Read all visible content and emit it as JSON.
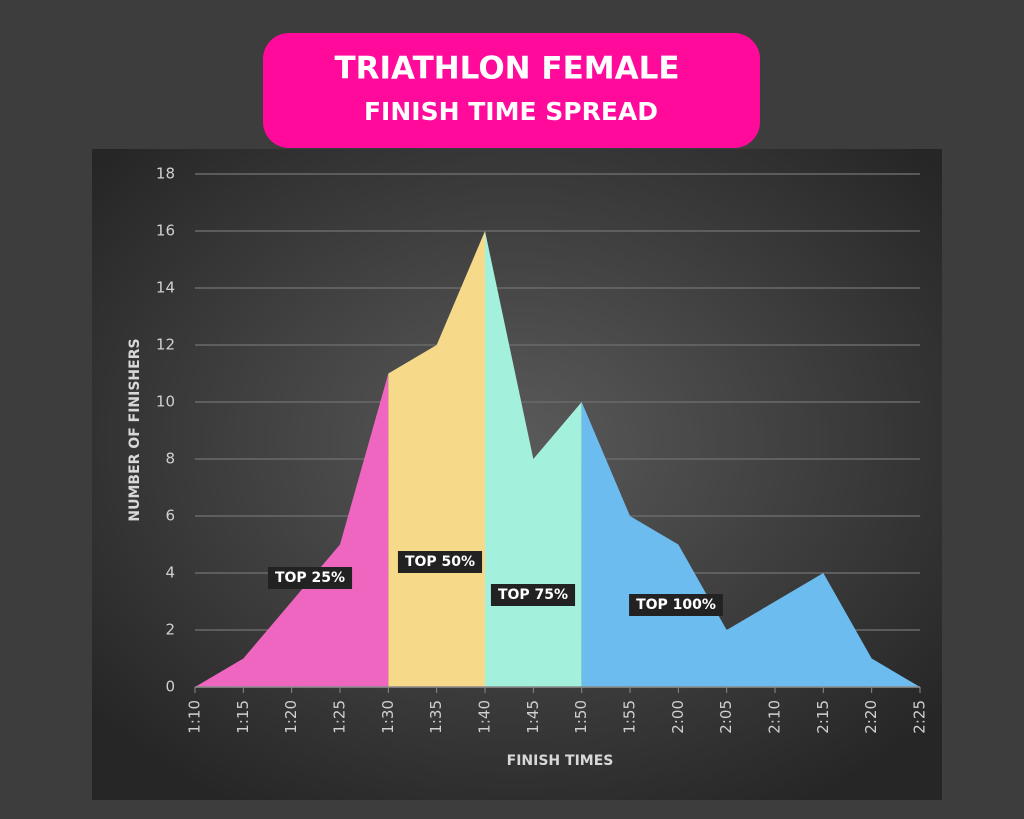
{
  "chart_data": {
    "type": "area",
    "title": "TRIATHLON FEMALE",
    "subtitle": "FINISH TIME SPREAD",
    "x_label": "FINISH TIMES",
    "y_label": "NUMBER OF FINISHERS",
    "categories": [
      "1:10",
      "1:15",
      "1:20",
      "1:25",
      "1:30",
      "1:35",
      "1:40",
      "1:45",
      "1:50",
      "1:55",
      "2:00",
      "2:05",
      "2:10",
      "2:15",
      "2:20",
      "2:25"
    ],
    "series": [
      {
        "name": "TOP 25%",
        "color": "#ee66c0",
        "values": [
          0,
          1,
          3,
          5,
          11,
          null,
          null,
          null,
          null,
          null,
          null,
          null,
          null,
          null,
          null,
          null
        ]
      },
      {
        "name": "TOP 50%",
        "color": "#f7d98a",
        "values": [
          null,
          null,
          null,
          null,
          11,
          12,
          16,
          null,
          null,
          null,
          null,
          null,
          null,
          null,
          null,
          null
        ]
      },
      {
        "name": "TOP 75%",
        "color": "#a3f0dc",
        "values": [
          null,
          null,
          null,
          null,
          null,
          null,
          16,
          8,
          10,
          null,
          null,
          null,
          null,
          null,
          null,
          null
        ]
      },
      {
        "name": "TOP 100%",
        "color": "#6cbcf0",
        "values": [
          null,
          null,
          null,
          null,
          null,
          null,
          null,
          null,
          10,
          6,
          5,
          2,
          3,
          4,
          1,
          0
        ]
      }
    ],
    "ylim": [
      0,
      18
    ],
    "yticks": [
      0,
      2,
      4,
      6,
      8,
      10,
      12,
      14,
      16,
      18
    ],
    "grid": true
  }
}
